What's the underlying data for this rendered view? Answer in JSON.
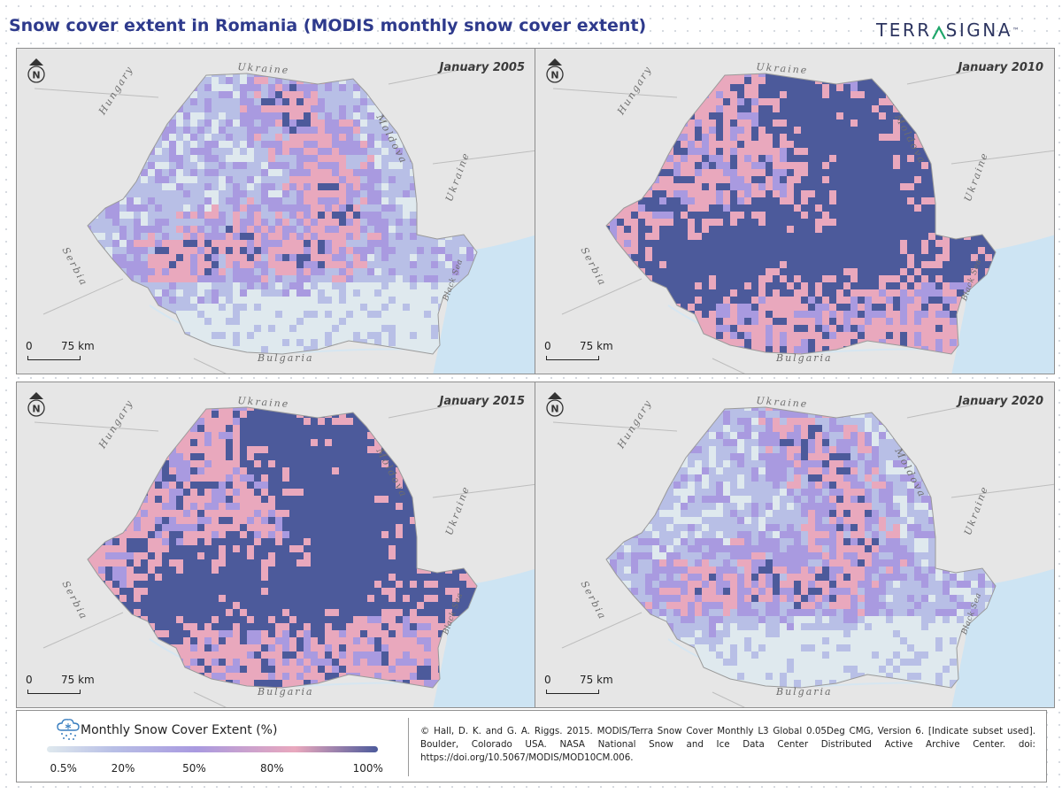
{
  "title": "Snow cover extent in Romania (MODIS monthly snow cover extent)",
  "logo": {
    "text": "TERRASIGNA",
    "trademark": "™",
    "accent_color": "#1fa66a",
    "color": "#2d3560"
  },
  "colors": {
    "title": "#2e3a8c",
    "water": "#cde4f3",
    "land": "#e6e6e6",
    "snow_low": "#dfe9ee",
    "snow_20": "#b8bfe6",
    "snow_50": "#a99ae0",
    "snow_80": "#e9a8bd",
    "snow_high": "#4c5a9b"
  },
  "panels": [
    {
      "label": "January 2005",
      "snow_mean_index": 1,
      "countries": {
        "north": "Ukraine",
        "west": "Hungary",
        "east": "Moldova",
        "southwest": "Serbia",
        "south": "Bulgaria",
        "southeast": "Ukraine",
        "sea": "Black Sea"
      },
      "scale": {
        "zero": "0",
        "distance": "75 km"
      }
    },
    {
      "label": "January 2010",
      "snow_mean_index": 3,
      "countries": {
        "north": "Ukraine",
        "west": "Hungary",
        "east": "Moldova",
        "southwest": "Serbia",
        "south": "Bulgaria",
        "southeast": "Ukraine",
        "sea": "Black Sea"
      },
      "scale": {
        "zero": "0",
        "distance": "75 km"
      }
    },
    {
      "label": "January 2015",
      "snow_mean_index": 3,
      "countries": {
        "north": "Ukraine",
        "west": "Hungary",
        "east": "Moldova",
        "southwest": "Serbia",
        "south": "Bulgaria",
        "southeast": "Ukraine",
        "sea": "Black Sea"
      },
      "scale": {
        "zero": "0",
        "distance": "75 km"
      }
    },
    {
      "label": "January 2020",
      "snow_mean_index": 1,
      "countries": {
        "north": "Ukraine",
        "west": "Hungary",
        "east": "Moldova",
        "southwest": "Serbia",
        "south": "Bulgaria",
        "southeast": "Ukraine",
        "sea": "Black Sea"
      },
      "scale": {
        "zero": "0",
        "distance": "75 km"
      }
    }
  ],
  "legend": {
    "title": "Monthly Snow Cover Extent (%)",
    "ticks": [
      "0.5%",
      "20%",
      "50%",
      "80%",
      "100%"
    ],
    "tick_values": [
      0.5,
      20,
      50,
      80,
      100
    ]
  },
  "citation": "© Hall, D. K. and G. A. Riggs. 2015. MODIS/Terra Snow Cover Monthly L3 Global 0.05Deg CMG, Version 6. [Indicate subset used]. Boulder, Colorado USA. NASA National Snow and Ice Data Center Distributed Active Archive Center. doi: https://doi.org/10.5067/MODIS/MOD10CM.006."
}
